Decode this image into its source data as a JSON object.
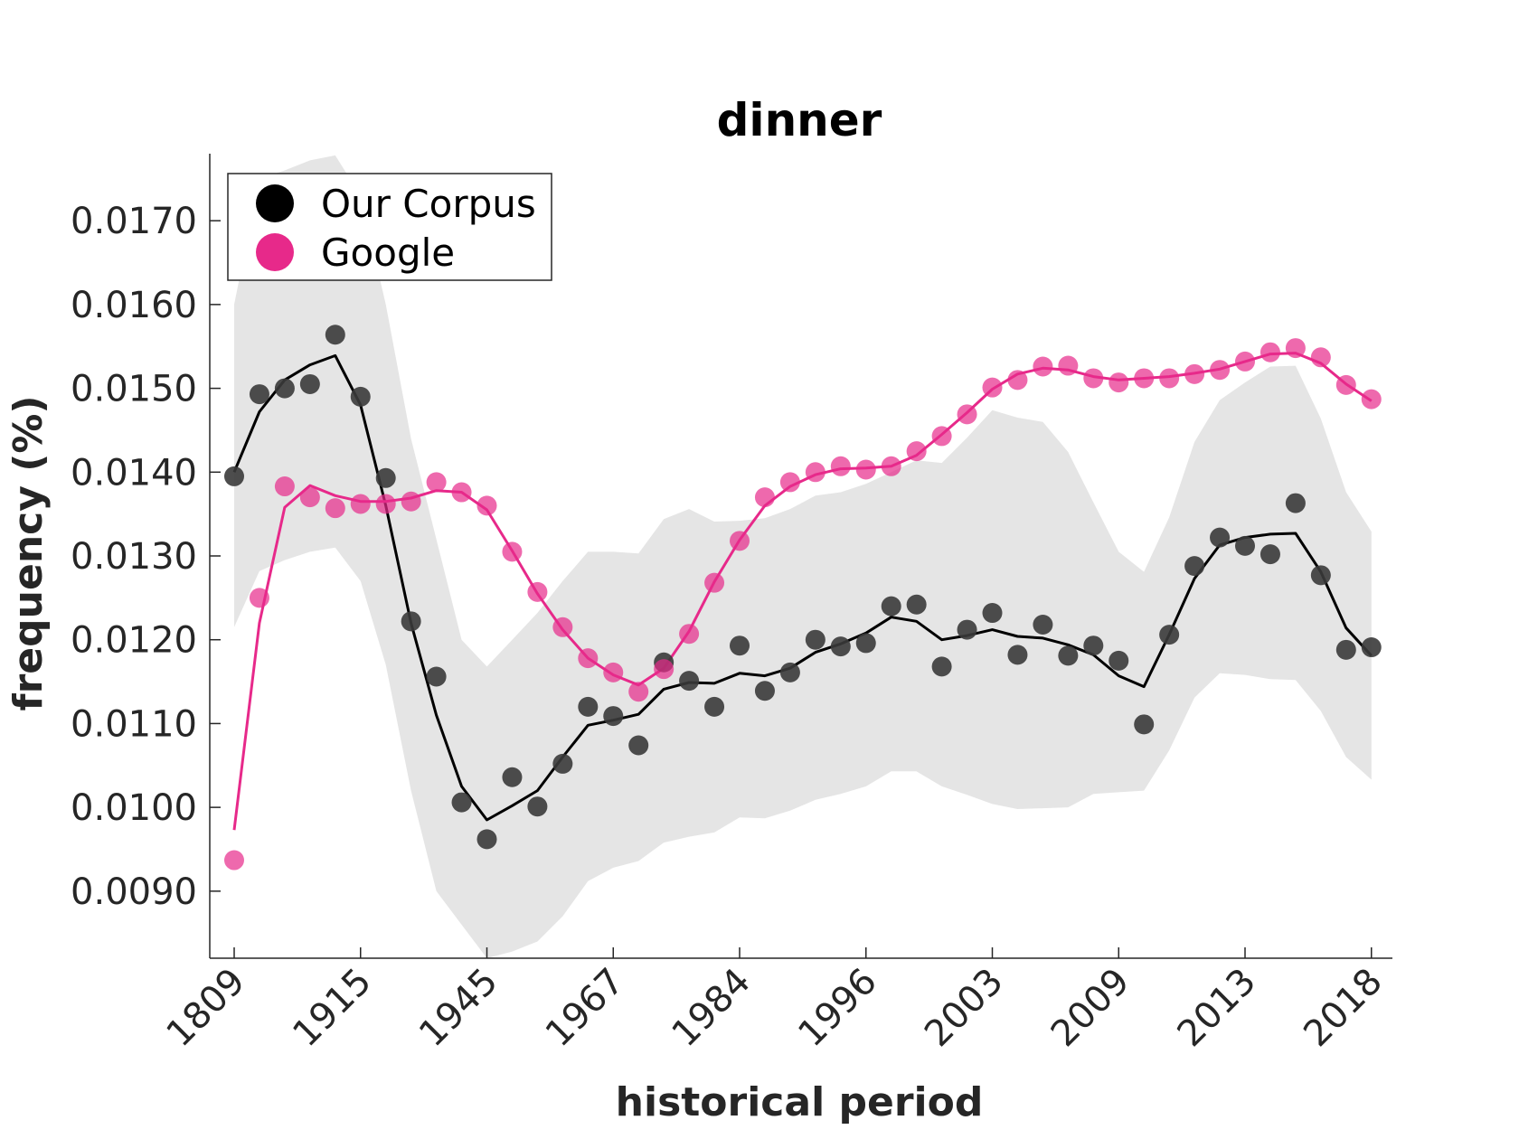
{
  "chart_data": {
    "type": "line",
    "title": "dinner",
    "xlabel": "historical period",
    "ylabel": "frequency (%)",
    "ylim": [
      0.0082,
      0.0178
    ],
    "yticks": [
      "0.0090",
      "0.0100",
      "0.0110",
      "0.0120",
      "0.0130",
      "0.0140",
      "0.0150",
      "0.0160",
      "0.0170"
    ],
    "ytick_values": [
      0.009,
      0.01,
      0.011,
      0.012,
      0.013,
      0.014,
      0.015,
      0.016,
      0.017
    ],
    "xtick_labels": [
      "1809",
      "1915",
      "1945",
      "1967",
      "1984",
      "1996",
      "2003",
      "2009",
      "2013",
      "2018"
    ],
    "xtick_indices": [
      0,
      5,
      10,
      15,
      20,
      25,
      30,
      35,
      40,
      45
    ],
    "legend_position": "top-left",
    "grid": false,
    "series": [
      {
        "name": "Our Corpus",
        "color": "#000000",
        "points": [
          0.01395,
          0.01493,
          0.015,
          0.01505,
          0.01564,
          0.0149,
          0.01393,
          0.01222,
          0.01156,
          0.01006,
          0.00962,
          0.01036,
          0.01001,
          0.01052,
          0.0112,
          0.01109,
          0.01074,
          0.01173,
          0.01151,
          0.0112,
          0.01193,
          0.01139,
          0.01161,
          0.012,
          0.01192,
          0.01196,
          0.0124,
          0.01242,
          0.01168,
          0.01212,
          0.01232,
          0.01182,
          0.01218,
          0.01181,
          0.01193,
          0.01175,
          0.01099,
          0.01206,
          0.01288,
          0.01322,
          0.01312,
          0.01302,
          0.01363,
          0.01277,
          0.01188,
          0.01191
        ],
        "smooth": [
          0.014,
          0.01472,
          0.0151,
          0.01528,
          0.01539,
          0.0148,
          0.0136,
          0.0122,
          0.0111,
          0.01025,
          0.00985,
          0.01002,
          0.0102,
          0.0106,
          0.01098,
          0.01104,
          0.01111,
          0.01141,
          0.01149,
          0.01148,
          0.0116,
          0.01157,
          0.01166,
          0.01185,
          0.01195,
          0.01208,
          0.01227,
          0.01222,
          0.012,
          0.01205,
          0.01212,
          0.01204,
          0.01202,
          0.01194,
          0.01182,
          0.01157,
          0.01144,
          0.01206,
          0.01273,
          0.01313,
          0.01322,
          0.01326,
          0.01327,
          0.01281,
          0.01214,
          0.01181
        ],
        "band_upper": [
          0.016,
          0.0175,
          0.0176,
          0.01772,
          0.01778,
          0.0173,
          0.016,
          0.0144,
          0.0132,
          0.012,
          0.01168,
          0.012,
          0.01232,
          0.0127,
          0.01305,
          0.01305,
          0.01303,
          0.01344,
          0.01356,
          0.01341,
          0.01342,
          0.01345,
          0.01356,
          0.01372,
          0.01376,
          0.01386,
          0.014,
          0.01414,
          0.01411,
          0.01441,
          0.01474,
          0.01465,
          0.0146,
          0.01424,
          0.01364,
          0.01305,
          0.01281,
          0.01346,
          0.01436,
          0.01486,
          0.01507,
          0.01526,
          0.01527,
          0.01464,
          0.01376,
          0.01329
        ],
        "band_lower": [
          0.01215,
          0.01282,
          0.01295,
          0.01305,
          0.0131,
          0.0127,
          0.0117,
          0.0102,
          0.009,
          0.0086,
          0.0082,
          0.00828,
          0.0084,
          0.0087,
          0.00912,
          0.00928,
          0.00936,
          0.00958,
          0.00965,
          0.0097,
          0.00988,
          0.00987,
          0.00996,
          0.01009,
          0.01016,
          0.01025,
          0.01043,
          0.01043,
          0.01025,
          0.01015,
          0.01004,
          0.00998,
          0.00999,
          0.01,
          0.01016,
          0.01018,
          0.0102,
          0.01068,
          0.01131,
          0.0116,
          0.01158,
          0.01153,
          0.01152,
          0.01115,
          0.0106,
          0.01033
        ]
      },
      {
        "name": "Google",
        "color": "#e7298a",
        "points": [
          0.00937,
          0.0125,
          0.01383,
          0.0137,
          0.01357,
          0.01362,
          0.01362,
          0.01365,
          0.01388,
          0.01376,
          0.0136,
          0.01305,
          0.01257,
          0.01215,
          0.01178,
          0.01161,
          0.01138,
          0.01165,
          0.01207,
          0.01268,
          0.01318,
          0.0137,
          0.01388,
          0.014,
          0.01407,
          0.01403,
          0.01407,
          0.01425,
          0.01443,
          0.01469,
          0.01501,
          0.0151,
          0.01526,
          0.01527,
          0.01512,
          0.01507,
          0.01512,
          0.01512,
          0.01517,
          0.01522,
          0.01532,
          0.01543,
          0.01548,
          0.01537,
          0.01504,
          0.01487
        ],
        "smooth": [
          0.00973,
          0.0122,
          0.01358,
          0.01384,
          0.01372,
          0.01365,
          0.01365,
          0.01369,
          0.01378,
          0.01376,
          0.01355,
          0.01306,
          0.01255,
          0.01212,
          0.01178,
          0.01158,
          0.01146,
          0.01166,
          0.0121,
          0.01269,
          0.01319,
          0.0136,
          0.01383,
          0.01397,
          0.01404,
          0.01405,
          0.01407,
          0.0142,
          0.01445,
          0.01471,
          0.01499,
          0.01517,
          0.01524,
          0.01522,
          0.01514,
          0.0151,
          0.01512,
          0.01514,
          0.01518,
          0.01523,
          0.01532,
          0.01541,
          0.01542,
          0.0153,
          0.01505,
          0.01485
        ]
      }
    ]
  }
}
